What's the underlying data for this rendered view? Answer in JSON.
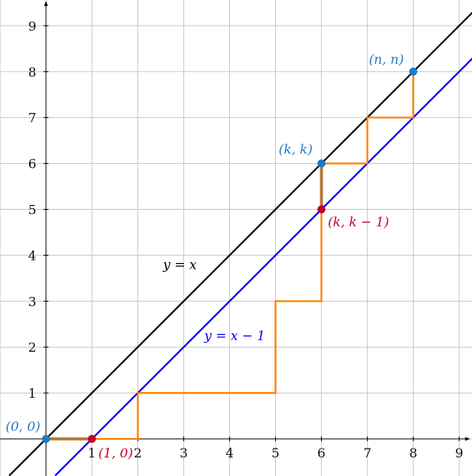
{
  "chart_data": {
    "type": "line",
    "x_ticks": [
      "1",
      "2",
      "3",
      "4",
      "5",
      "6",
      "7",
      "8",
      "9"
    ],
    "y_ticks": [
      "1",
      "2",
      "3",
      "4",
      "5",
      "6",
      "7",
      "8",
      "9"
    ],
    "xlim": [
      -1,
      9.3
    ],
    "ylim": [
      -0.8,
      9.6
    ],
    "grid": true,
    "series": [
      {
        "name": "y = x",
        "color": "#000000",
        "points": [
          [
            -0.8,
            -0.8
          ],
          [
            9.35,
            9.35
          ]
        ]
      },
      {
        "name": "y = x - 1",
        "color": "#0000ff",
        "points": [
          [
            0.2,
            -0.8
          ],
          [
            9.35,
            8.35
          ]
        ]
      },
      {
        "name": "path",
        "color": "#ff8000",
        "points": [
          [
            0,
            0
          ],
          [
            2,
            0
          ],
          [
            2,
            1
          ],
          [
            5,
            1
          ],
          [
            5,
            3
          ],
          [
            6,
            3
          ],
          [
            6,
            6
          ],
          [
            7,
            6
          ],
          [
            7,
            7
          ],
          [
            8,
            7
          ],
          [
            8,
            8
          ]
        ]
      },
      {
        "name": "highlight",
        "color": "#b5773a",
        "points": [
          [
            0,
            0
          ],
          [
            1,
            0
          ]
        ],
        "points2": [
          [
            6,
            5
          ],
          [
            6,
            6
          ]
        ]
      }
    ],
    "equation_labels": [
      {
        "text": "y = x",
        "x": 2.55,
        "y": 3.7,
        "color": "#000000"
      },
      {
        "text": "y = x − 1",
        "x": 3.45,
        "y": 2.15,
        "color": "#0000ff"
      }
    ],
    "points": [
      {
        "label": "(0, 0)",
        "x": 0,
        "y": 0,
        "color": "#1f78c8"
      },
      {
        "label": "(1, 0)",
        "x": 1,
        "y": 0,
        "color": "#c0002a"
      },
      {
        "label": "(k, k)",
        "x": 6,
        "y": 6,
        "color": "#1f78c8"
      },
      {
        "label": "(k, k − 1)",
        "x": 6,
        "y": 5,
        "color": "#c0002a"
      },
      {
        "label": "(n, n)",
        "x": 8,
        "y": 8,
        "color": "#1f78c8"
      }
    ]
  }
}
